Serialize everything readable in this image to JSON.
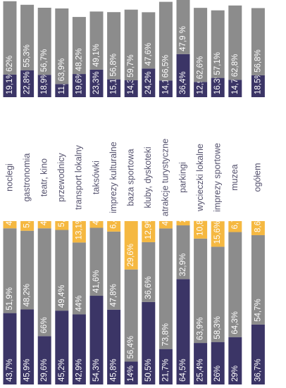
{
  "chart_data": [
    {
      "type": "bar",
      "stacked": true,
      "orientation": "horizontal (rotated page)",
      "ylim": [
        0,
        100
      ],
      "categories": [
        "noclegi",
        "gastronomia",
        "teatr, kino",
        "przewodnicy",
        "transport lokalny",
        "taksówki",
        "imprezy kulturalne",
        "baza sportowa",
        "kluby, dyskoteki",
        "atrakcje turystyczne",
        "parkingi",
        "wycieczki lokalne",
        "imprezy sportowe",
        "muzea",
        "ogółem"
      ],
      "series": [
        {
          "values": [
            43.7,
            45.9,
            29.6,
            45.2,
            42.9,
            54.3,
            45.8,
            14,
            50.5,
            21.7,
            64.5,
            25.4,
            26,
            29,
            36.7
          ],
          "labels": [
            "43,7%",
            "45,9%",
            "29,6%",
            "45,2%",
            "42,9%",
            "54,3%",
            "45,8%",
            "14%",
            "50,5%",
            "21,7%",
            "64,5%",
            "25,4%",
            "26%",
            "29%",
            "36,7%"
          ],
          "color": "#3b3566"
        },
        {
          "values": [
            51.9,
            48.2,
            66,
            49.4,
            44,
            41.6,
            47.8,
            56.4,
            36.6,
            73.8,
            32.9,
            63.9,
            58.3,
            64.3,
            54.7
          ],
          "labels": [
            "51,9%",
            "48,2%",
            "66%",
            "49,4%",
            "44%",
            "41,6%",
            "47,8%",
            "56,4%",
            "36,6%",
            "73,8%",
            "32,9%",
            "63,9%",
            "58,3%",
            "64,3%",
            "54,7%"
          ],
          "color": "#8c8c8c"
        },
        {
          "values": [
            4.4,
            5.9,
            4.4,
            5.4,
            13.1,
            4.1,
            6.4,
            29.6,
            12.9,
            4.5,
            2.7,
            10.8,
            15.6,
            6.7,
            8.6
          ],
          "labels": [
            "4,4%",
            "5,9%",
            "4,4%",
            "5,4%",
            "13,1%",
            "4,1%",
            "6,4%",
            "29,6%",
            "12,9%",
            "4,5%",
            "2,7%",
            "10,8%",
            "15,6%",
            "6,7%",
            "8,6%"
          ],
          "color": "#f5b841"
        }
      ]
    },
    {
      "type": "bar",
      "stacked": true,
      "orientation": "horizontal (rotated page)",
      "ylim": [
        0,
        100
      ],
      "categories": [
        "noclegi",
        "gastronomia",
        "teatr, kino",
        "przewodnicy",
        "transport lokalny",
        "taksówki",
        "imprezy kulturalne",
        "baza sportowa",
        "kluby, dyskoteki",
        "atrakcje turystyczne",
        "parkingi",
        "wycieczki lokalne",
        "imprezy sportowe",
        "muzea",
        "ogółem"
      ],
      "series": [
        {
          "values": [
            19.1,
            22.8,
            18.9,
            11.1,
            19.6,
            23.3,
            15.1,
            14.3,
            24.2,
            14.1,
            36.4,
            12.9,
            16.3,
            14.7,
            18.5
          ],
          "labels": [
            "19,1%",
            "22,8%",
            "18,9%",
            "11,1%",
            "19,6%",
            "23,3%",
            "15,1%",
            "14,3%",
            "24,2%",
            "14,1%",
            "36,4%",
            "12,9%",
            "16,3%",
            "14,7%",
            "18,5%"
          ],
          "color": "#3b3566"
        },
        {
          "values": [
            62,
            55.3,
            56.7,
            63.9,
            48.2,
            49.1,
            56.8,
            59.7,
            47.6,
            66.5,
            47.9,
            62.6,
            57.1,
            62.8,
            56.8
          ],
          "labels": [
            "62%",
            "55,3%",
            "56,7%",
            "63,9%",
            "48,2%",
            "49,1%",
            "56,8%",
            "59,7%",
            "47,6%",
            "66,5%",
            "47,9 %",
            "62,6%",
            "57,1%",
            "62,8%",
            "56,8%"
          ],
          "color": "#8c8c8c"
        }
      ]
    }
  ],
  "colors": {
    "dark": "#3b3566",
    "gray": "#8c8c8c",
    "yellow": "#f5b841",
    "text": "#55526e"
  }
}
